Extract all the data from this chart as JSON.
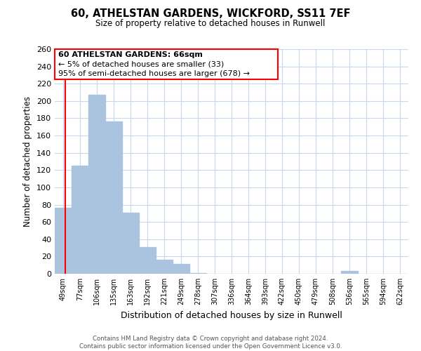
{
  "title": "60, ATHELSTAN GARDENS, WICKFORD, SS11 7EF",
  "subtitle": "Size of property relative to detached houses in Runwell",
  "xlabel": "Distribution of detached houses by size in Runwell",
  "ylabel": "Number of detached properties",
  "bar_color": "#aac4e0",
  "categories": [
    "49sqm",
    "77sqm",
    "106sqm",
    "135sqm",
    "163sqm",
    "192sqm",
    "221sqm",
    "249sqm",
    "278sqm",
    "307sqm",
    "336sqm",
    "364sqm",
    "393sqm",
    "422sqm",
    "450sqm",
    "479sqm",
    "508sqm",
    "536sqm",
    "565sqm",
    "594sqm",
    "622sqm"
  ],
  "values": [
    76,
    125,
    207,
    176,
    71,
    31,
    16,
    11,
    1,
    0,
    0,
    0,
    0,
    0,
    0,
    0,
    0,
    3,
    0,
    0,
    0
  ],
  "red_line_x": 0.36,
  "ylim": [
    0,
    260
  ],
  "yticks": [
    0,
    20,
    40,
    60,
    80,
    100,
    120,
    140,
    160,
    180,
    200,
    220,
    240,
    260
  ],
  "annotation_title": "60 ATHELSTAN GARDENS: 66sqm",
  "annotation_line1": "← 5% of detached houses are smaller (33)",
  "annotation_line2": "95% of semi-detached houses are larger (678) →",
  "footer_line1": "Contains HM Land Registry data © Crown copyright and database right 2024.",
  "footer_line2": "Contains public sector information licensed under the Open Government Licence v3.0.",
  "background_color": "#ffffff",
  "grid_color": "#c8d8ec"
}
